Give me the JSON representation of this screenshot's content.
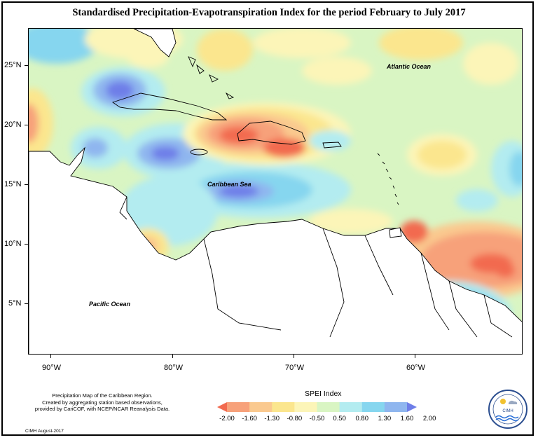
{
  "title": "Standardised Precipitation-Evapotranspiration Index for the period February to July 2017",
  "map": {
    "lat_labels": [
      "25°N",
      "20°N",
      "15°N",
      "10°N",
      "5°N"
    ],
    "lon_labels": [
      "90°W",
      "80°W",
      "70°W",
      "60°W"
    ],
    "place_labels": {
      "atlantic": "Atlantic Ocean",
      "caribbean": "Caribbean Sea",
      "pacific": "Pacific Ocean"
    }
  },
  "legend": {
    "title": "SPEI Index",
    "values": [
      "-2.00",
      "-1.60",
      "-1.30",
      "-0.80",
      "-0.50",
      "0.50",
      "0.80",
      "1.30",
      "1.60",
      "2.00"
    ],
    "colors": [
      "#f26a4f",
      "#f7a17a",
      "#fac98f",
      "#fbe68e",
      "#fcf5b8",
      "#d9f5c3",
      "#b3ecf0",
      "#86d6ef",
      "#8fb6ef",
      "#6e7ee8"
    ]
  },
  "caption": {
    "line1": "Precipitation Map of the Caribbean Region.",
    "line2": "Created by aggregating station based observations,",
    "line3": "provided by CariCOF, with NCEP/NCAR Reanalysis Data."
  },
  "credit": "CIMH August-2017",
  "logo": {
    "name": "CIMH"
  }
}
